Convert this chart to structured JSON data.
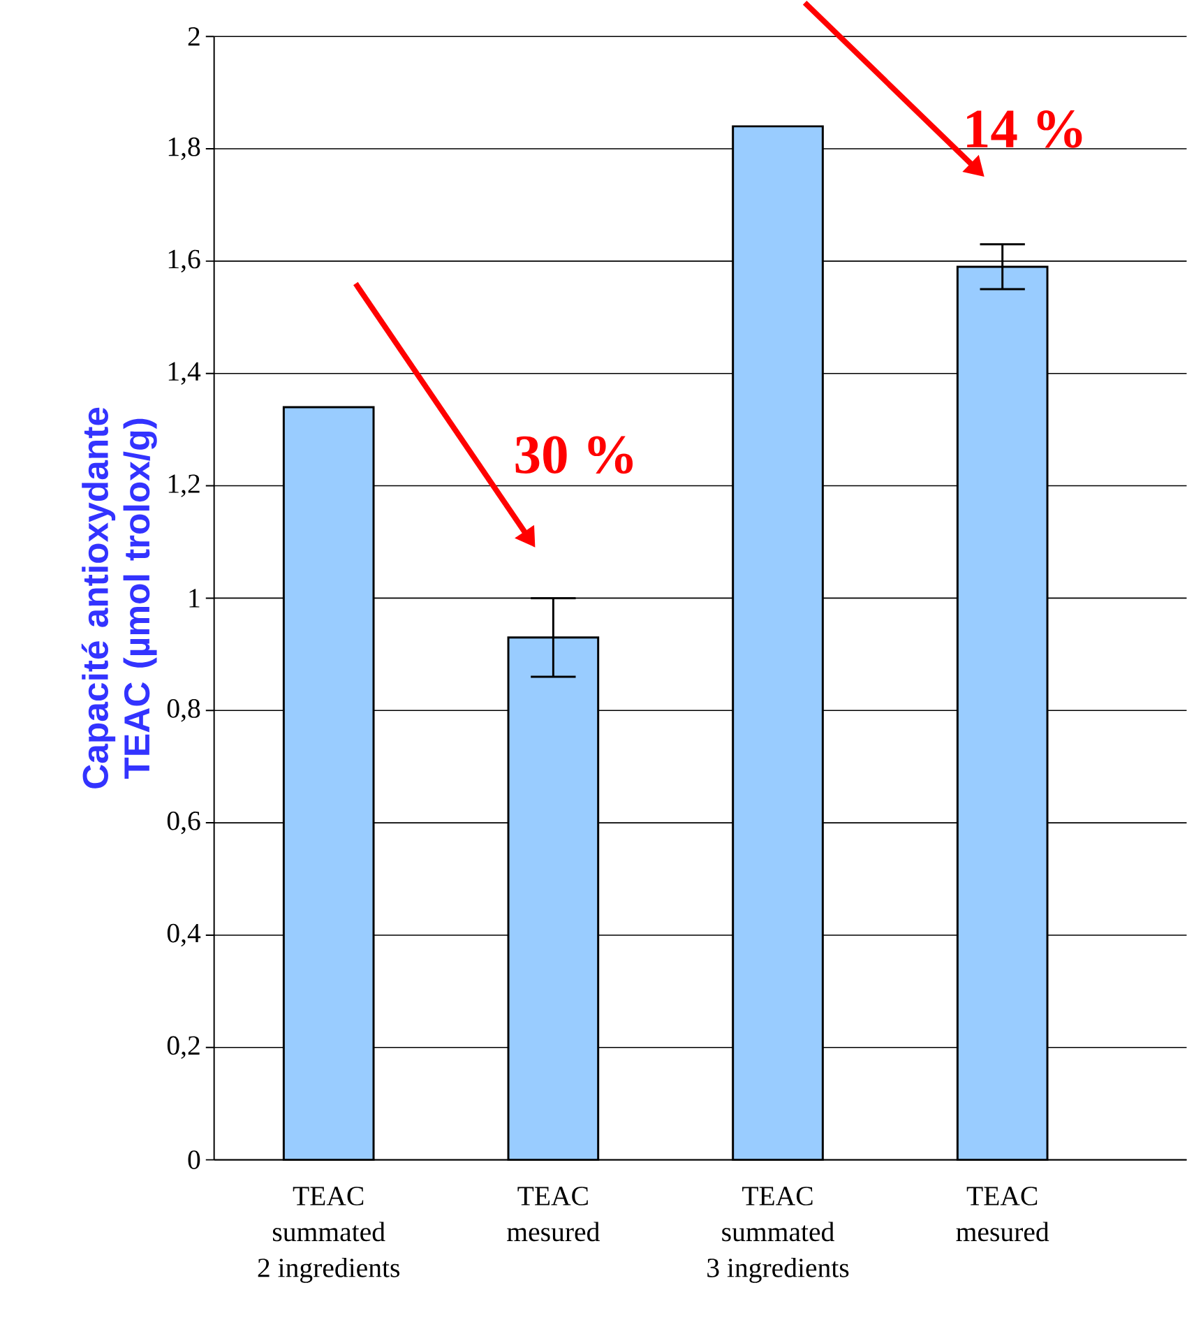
{
  "chart_data": {
    "type": "bar",
    "ylabel": "Capacité antioxydante TEAC (µmol trolox/g)",
    "categories": [
      "TEAC\nsummated\n2 ingredients",
      "TEAC\nmesured",
      "TEAC\nsummated\n3 ingredients",
      "TEAC\nmesured"
    ],
    "values": [
      1.34,
      0.93,
      1.84,
      1.59
    ],
    "errors": [
      null,
      [
        0.86,
        1.0
      ],
      null,
      [
        1.55,
        1.63
      ]
    ],
    "colors": [
      "#99ccff",
      "#99ccff",
      "#99ccff",
      "#99ccff"
    ],
    "ylim": [
      0,
      2
    ],
    "yticks": [
      {
        "value": 0,
        "label": "0"
      },
      {
        "value": 0.2,
        "label": "0,2"
      },
      {
        "value": 0.4,
        "label": "0,4"
      },
      {
        "value": 0.6,
        "label": "0,6"
      },
      {
        "value": 0.8,
        "label": "0,8"
      },
      {
        "value": 1,
        "label": "1"
      },
      {
        "value": 1.2,
        "label": "1,2"
      },
      {
        "value": 1.4,
        "label": "1,4"
      },
      {
        "value": 1.6,
        "label": "1,6"
      },
      {
        "value": 1.8,
        "label": "1,8"
      },
      {
        "value": 2,
        "label": "2"
      }
    ],
    "grid": "y",
    "annotations": [
      "30 %",
      "14 %"
    ]
  }
}
